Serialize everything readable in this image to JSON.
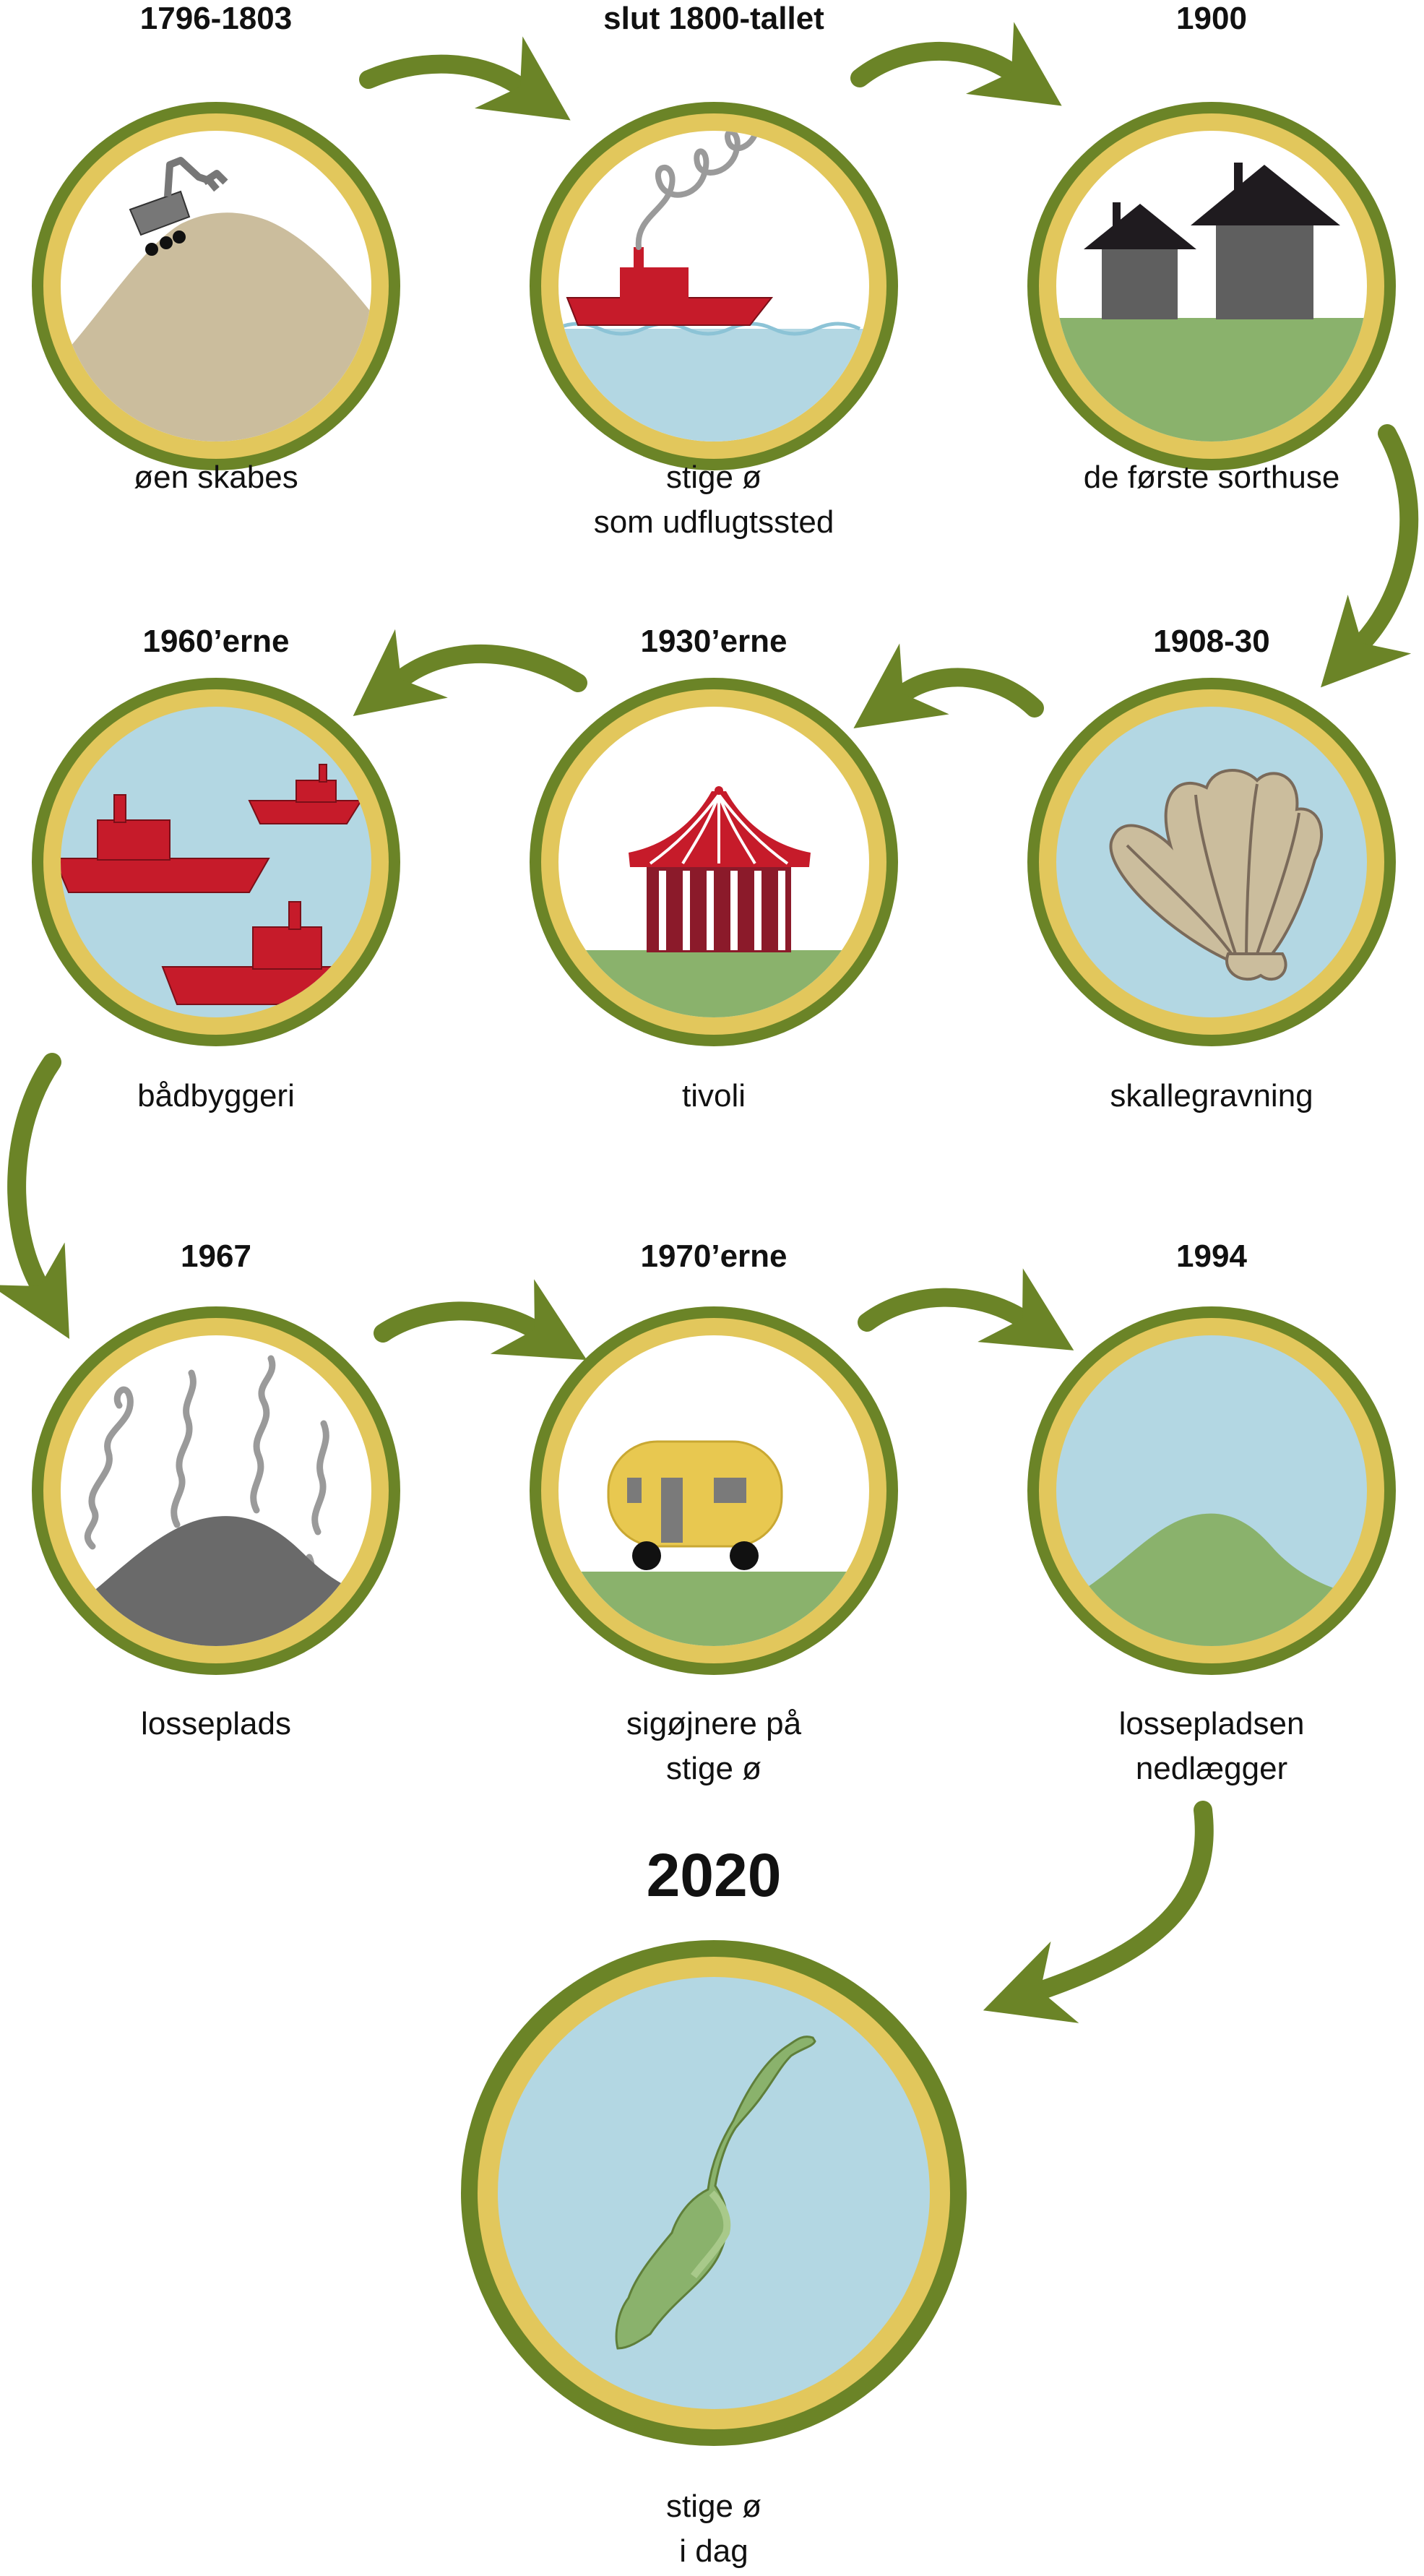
{
  "colors": {
    "ring_outer": "#6b8427",
    "ring_inner": "#e2c75c",
    "sky": "#b3d7e3",
    "grass": "#8ab26c",
    "sand": "#cbbd9d",
    "boat_red": "#c61b2a",
    "house": "#5f5f5f",
    "roof": "#1f1b1f",
    "trash": "#6a6a6a",
    "smoke": "#9a9a9a",
    "shell": "#cbbd9d",
    "caravan": "#e8c850",
    "island": "#8ab26c"
  },
  "stages": [
    {
      "year": "1796-1803",
      "caption": [
        "øen skabes"
      ],
      "icon": "island-formation-icon"
    },
    {
      "year": "slut 1800-tallet",
      "caption": [
        "stige ø",
        "som udflugtssted"
      ],
      "icon": "steamship-icon"
    },
    {
      "year": "1900",
      "caption": [
        "de første sorthuse"
      ],
      "icon": "houses-icon"
    },
    {
      "year": "1908-30",
      "caption": [
        "skallegravning"
      ],
      "icon": "shell-icon"
    },
    {
      "year": "1930’erne",
      "caption": [
        "tivoli"
      ],
      "icon": "circus-tent-icon"
    },
    {
      "year": "1960’erne",
      "caption": [
        "bådbyggeri"
      ],
      "icon": "boats-icon"
    },
    {
      "year": "1967",
      "caption": [
        "losseplads"
      ],
      "icon": "landfill-icon"
    },
    {
      "year": "1970’erne",
      "caption": [
        "sigøjnere på",
        "stige ø"
      ],
      "icon": "caravan-icon"
    },
    {
      "year": "1994",
      "caption": [
        "lossepladsen",
        "nedlægger"
      ],
      "icon": "green-hill-icon"
    },
    {
      "year": "2020",
      "caption": [
        "stige ø",
        "i dag"
      ],
      "icon": "island-map-icon"
    }
  ]
}
